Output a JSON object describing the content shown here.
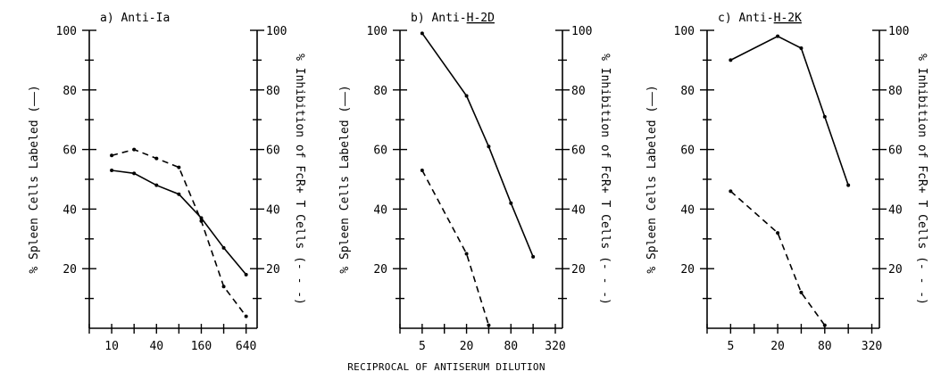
{
  "figure": {
    "shared_xlabel": "RECIPROCAL OF ANTISERUM DILUTION"
  },
  "chart_data": [
    {
      "type": "line",
      "panel_label": "a) Anti-Ia",
      "log_x": true,
      "x_ticks": [
        10,
        40,
        160,
        640
      ],
      "x_ticks_labels": [
        "10",
        "40",
        "160",
        "640"
      ],
      "xlim": [
        5,
        900
      ],
      "ylim": [
        0,
        100
      ],
      "y_ticks": [
        20,
        40,
        60,
        80,
        100
      ],
      "y_ticks_labels": [
        "20",
        "40",
        "60",
        "80",
        "100"
      ],
      "ylabel_left": "% Spleen Cells Labeled (——)",
      "ylabel_right": "% Inhibition of FcR+ T Cells (- - -)",
      "series": [
        {
          "style": "solid",
          "x": [
            10,
            20,
            40,
            80,
            160,
            320,
            640
          ],
          "y": [
            53,
            52,
            48,
            45,
            37,
            27,
            18
          ]
        },
        {
          "style": "dashed",
          "x": [
            10,
            20,
            40,
            80,
            160,
            320,
            640
          ],
          "y": [
            58,
            60,
            57,
            54,
            36,
            14,
            4
          ]
        }
      ]
    },
    {
      "type": "line",
      "panel_label_prefix": "b) Anti-",
      "panel_label_underlined": "H-2D",
      "log_x": true,
      "x_ticks": [
        5,
        20,
        80,
        320
      ],
      "x_ticks_labels": [
        "5",
        "20",
        "80",
        "320"
      ],
      "xlim": [
        2.5,
        400
      ],
      "ylim": [
        0,
        100
      ],
      "y_ticks": [
        20,
        40,
        60,
        80,
        100
      ],
      "y_ticks_labels": [
        "20",
        "40",
        "60",
        "80",
        "100"
      ],
      "ylabel_left": "% Spleen Cells Labeled (——)",
      "ylabel_right": "% Inhibition of FcR+ T Cells (- - -)",
      "series": [
        {
          "style": "solid",
          "x": [
            5,
            20,
            40,
            80,
            160
          ],
          "y": [
            99,
            78,
            61,
            42,
            24
          ]
        },
        {
          "style": "dashed",
          "x": [
            5,
            20,
            40
          ],
          "y": [
            53,
            25,
            1
          ]
        }
      ]
    },
    {
      "type": "line",
      "panel_label_prefix": "c) Anti-",
      "panel_label_underlined": "H-2K",
      "log_x": true,
      "x_ticks": [
        5,
        20,
        80,
        320
      ],
      "x_ticks_labels": [
        "5",
        "20",
        "80",
        "320"
      ],
      "xlim": [
        2.5,
        400
      ],
      "ylim": [
        0,
        100
      ],
      "y_ticks": [
        20,
        40,
        60,
        80,
        100
      ],
      "y_ticks_labels": [
        "20",
        "40",
        "60",
        "80",
        "100"
      ],
      "ylabel_left": "% Spleen Cells Labeled (——)",
      "ylabel_right": "% Inhibition of FcR+ T Cells (- - -)",
      "series": [
        {
          "style": "solid",
          "x": [
            5,
            20,
            40,
            80,
            160
          ],
          "y": [
            90,
            98,
            94,
            71,
            48
          ]
        },
        {
          "style": "dashed",
          "x": [
            5,
            20,
            40,
            80
          ],
          "y": [
            46,
            32,
            12,
            1
          ]
        }
      ]
    }
  ]
}
